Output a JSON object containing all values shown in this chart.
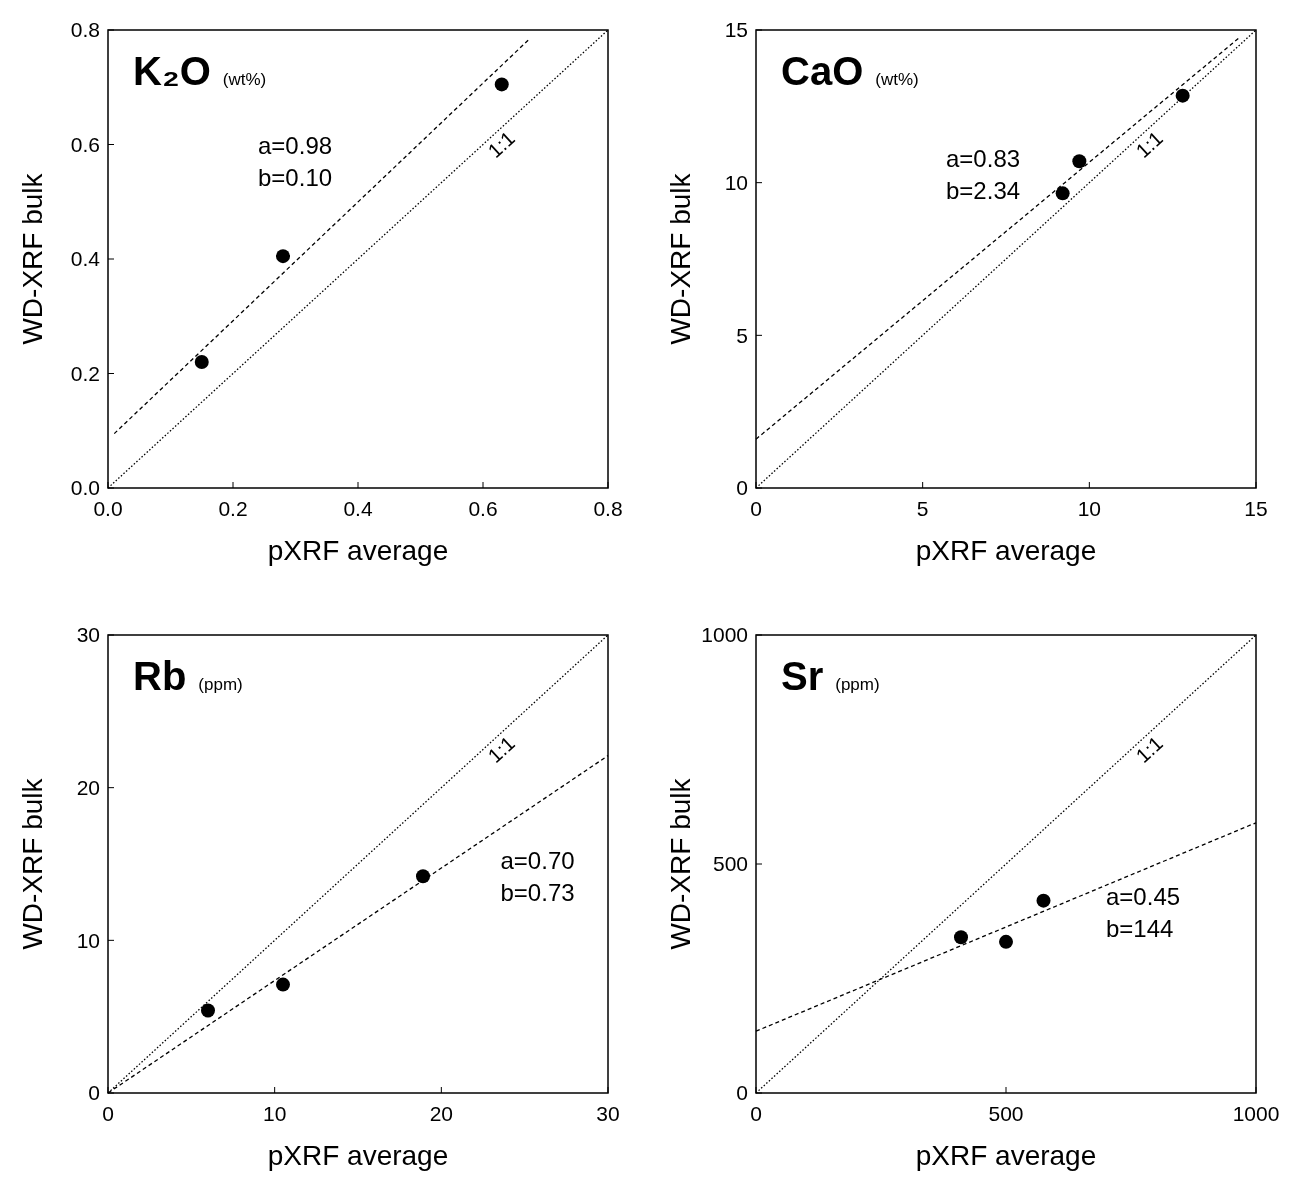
{
  "chart_data": [
    {
      "type": "scatter",
      "title": "K₂O",
      "subtitle": "(wt%)",
      "xlabel": "pXRF average",
      "ylabel": "WD-XRF bulk",
      "xlim": [
        0,
        0.8
      ],
      "ylim": [
        0,
        0.8
      ],
      "xticks": [
        {
          "value": 0,
          "label": "0.0"
        },
        0.2,
        0.4,
        0.6,
        0.8
      ],
      "yticks": [
        {
          "value": 0,
          "label": "0.0"
        },
        0.2,
        0.4,
        0.6,
        0.8
      ],
      "annotations": [
        "a=0.98",
        "b=0.10"
      ],
      "series": [
        {
          "marker": "circle",
          "color": "#000000",
          "x": [
            0.15,
            0.28,
            0.63
          ],
          "values": [
            0.22,
            0.405,
            0.705
          ]
        },
        {
          "type": "line",
          "line_style": "dashed",
          "color": "#000000",
          "x": [
            0.01,
            0.675
          ],
          "values": [
            0.095,
            0.785
          ]
        },
        {
          "type": "line",
          "line_style": "dotted",
          "name": "1:1",
          "color": "#000000",
          "x": [
            0,
            0.8
          ],
          "values": [
            0,
            0.8
          ]
        }
      ]
    },
    {
      "type": "scatter",
      "title": "CaO",
      "subtitle": "(wt%)",
      "xlabel": "pXRF average",
      "ylabel": "WD-XRF bulk",
      "xlim": [
        0,
        15
      ],
      "ylim": [
        0,
        15
      ],
      "xticks": [
        0,
        5,
        10,
        15
      ],
      "yticks": [
        0,
        5,
        10,
        15
      ],
      "annotations": [
        "a=0.83",
        "b=2.34"
      ],
      "series": [
        {
          "marker": "circle",
          "color": "#000000",
          "x": [
            9.2,
            9.7,
            12.8
          ],
          "values": [
            9.65,
            10.7,
            12.85
          ]
        },
        {
          "type": "line",
          "line_style": "dashed",
          "color": "#000000",
          "x": [
            0,
            14.5
          ],
          "values": [
            1.6,
            14.75
          ]
        },
        {
          "type": "line",
          "line_style": "dotted",
          "name": "1:1",
          "color": "#000000",
          "x": [
            0,
            15
          ],
          "values": [
            0,
            15
          ]
        }
      ]
    },
    {
      "type": "scatter",
      "title": "Rb",
      "subtitle": "(ppm)",
      "xlabel": "pXRF average",
      "ylabel": "WD-XRF bulk",
      "xlim": [
        0,
        30
      ],
      "ylim": [
        0,
        30
      ],
      "xticks": [
        0,
        10,
        20,
        30
      ],
      "yticks": [
        0,
        10,
        20,
        30
      ],
      "annotations": [
        "a=0.70",
        "b=0.73"
      ],
      "series": [
        {
          "marker": "circle",
          "color": "#000000",
          "x": [
            6,
            10.5,
            18.9
          ],
          "values": [
            5.4,
            7.1,
            14.2
          ]
        },
        {
          "type": "line",
          "line_style": "dashed",
          "color": "#000000",
          "x": [
            0,
            30
          ],
          "values": [
            0,
            22.1
          ]
        },
        {
          "type": "line",
          "line_style": "dotted",
          "name": "1:1",
          "color": "#000000",
          "x": [
            0,
            30
          ],
          "values": [
            0,
            30
          ]
        }
      ]
    },
    {
      "type": "scatter",
      "title": "Sr",
      "subtitle": "(ppm)",
      "xlabel": "pXRF average",
      "ylabel": "WD-XRF bulk",
      "xlim": [
        0,
        1000
      ],
      "ylim": [
        0,
        1000
      ],
      "xticks": [
        0,
        500,
        1000
      ],
      "yticks": [
        0,
        500,
        1000
      ],
      "annotations": [
        "a=0.45",
        "b=144"
      ],
      "series": [
        {
          "marker": "circle",
          "color": "#000000",
          "x": [
            410,
            500,
            575
          ],
          "values": [
            340,
            330,
            420
          ]
        },
        {
          "type": "line",
          "line_style": "dashed",
          "color": "#000000",
          "x": [
            0,
            1000
          ],
          "values": [
            135,
            590
          ]
        },
        {
          "type": "line",
          "line_style": "dotted",
          "name": "1:1",
          "color": "#000000",
          "x": [
            0,
            1000
          ],
          "values": [
            0,
            1000
          ]
        }
      ]
    }
  ]
}
